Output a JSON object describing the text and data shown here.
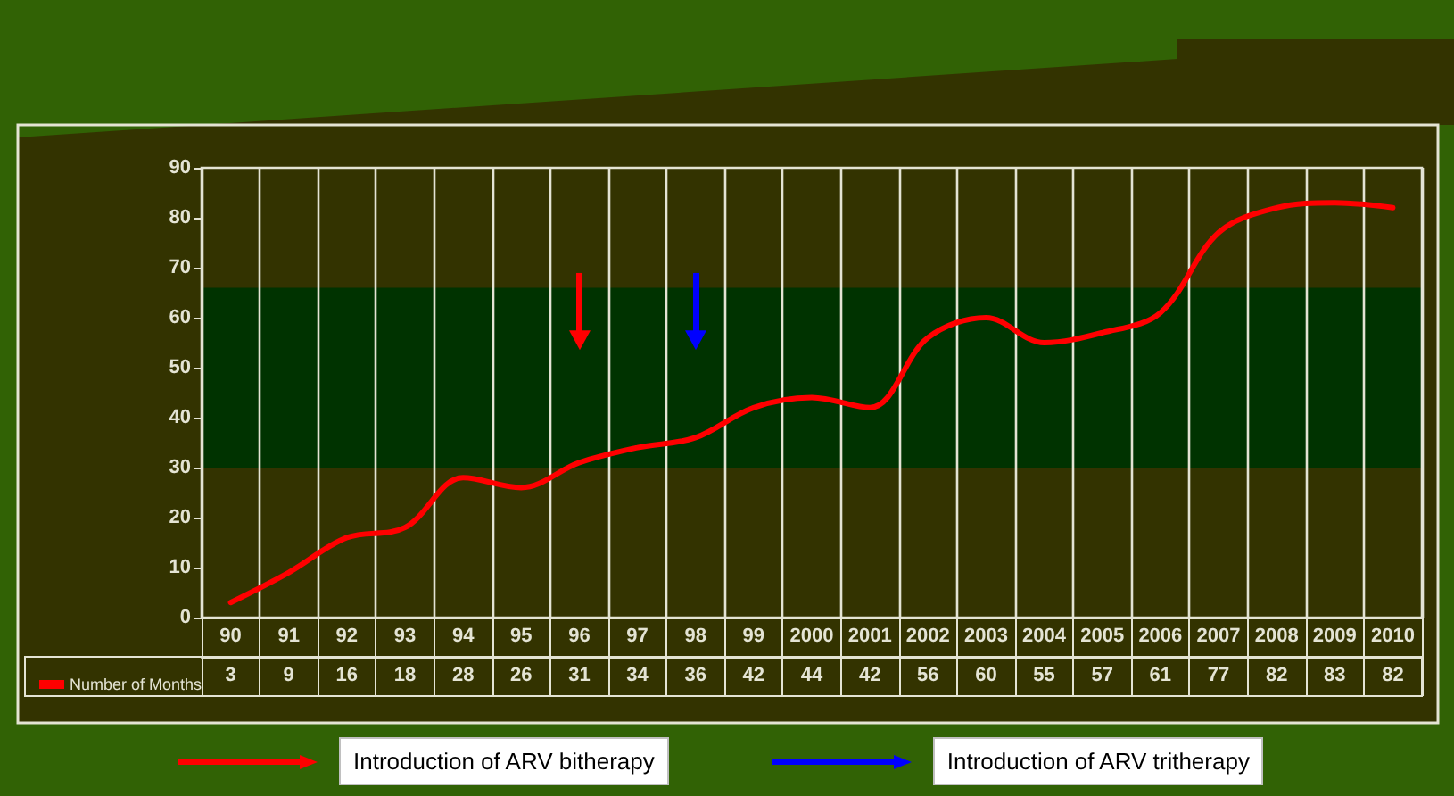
{
  "chart_data": {
    "type": "line",
    "categories": [
      "90",
      "91",
      "92",
      "93",
      "94",
      "95",
      "96",
      "97",
      "98",
      "99",
      "2000",
      "2001",
      "2002",
      "2003",
      "2004",
      "2005",
      "2006",
      "2007",
      "2008",
      "2009",
      "2010"
    ],
    "series": [
      {
        "name": "Number of Months",
        "color": "#ff0000",
        "values": [
          3,
          9,
          16,
          18,
          28,
          26,
          31,
          34,
          36,
          42,
          44,
          42,
          56,
          60,
          55,
          57,
          61,
          77,
          82,
          83,
          82
        ]
      }
    ],
    "ylim": [
      0,
      90
    ],
    "yticks": [
      0,
      10,
      20,
      30,
      40,
      50,
      60,
      70,
      80,
      90
    ],
    "grid": "x",
    "legend": "bottom left",
    "marker": "none",
    "data_labels": true,
    "ref_lines": [
      {
        "axis": "x",
        "value": "96",
        "label": "Introduction of ARV bitherapy",
        "color": "#ff0000"
      },
      {
        "axis": "x",
        "value": "98",
        "label": "Introduction of ARV tritherapy",
        "color": "#0000ff"
      }
    ],
    "bands": [
      {
        "axis": "y",
        "from": 30,
        "to": 66,
        "color": "#003300"
      }
    ]
  }
}
